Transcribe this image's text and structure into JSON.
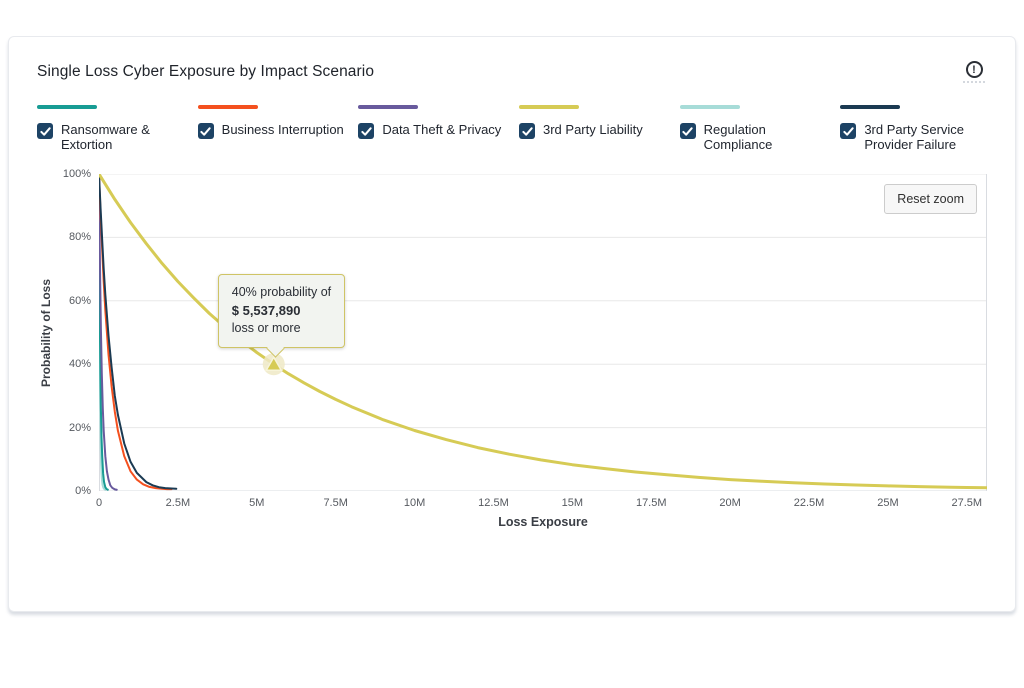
{
  "card": {
    "title": "Single Loss Cyber Exposure by Impact Scenario",
    "info_icon_glyph": "!"
  },
  "legend": [
    {
      "label": "Ransomware & Extortion",
      "color": "#189c94",
      "checked": true
    },
    {
      "label": "Business Interruption",
      "color": "#f4501e",
      "checked": true
    },
    {
      "label": "Data Theft & Privacy",
      "color": "#685a9d",
      "checked": true
    },
    {
      "label": "3rd Party Liability",
      "color": "#d6cb55",
      "checked": true
    },
    {
      "label": "Regulation Compliance",
      "color": "#a7dcd8",
      "checked": true
    },
    {
      "label": "3rd Party Service Provider Failure",
      "color": "#1b3a52",
      "checked": true
    }
  ],
  "chart": {
    "reset_label": "Reset zoom",
    "tooltip": {
      "line1": "40% probability of",
      "value": "$ 5,537,890",
      "line3": "loss or more",
      "marker_x": 5.53789,
      "marker_y": 40
    },
    "colors": {
      "grid": "#e8e8e8",
      "axis_border": "#d9dce1",
      "checkbox": "#1d4365",
      "marker_fill": "#d6cb55",
      "marker_halo": "#efe9c6"
    }
  },
  "chart_data": {
    "type": "line",
    "title": "Single Loss Cyber Exposure by Impact Scenario",
    "xlabel": "Loss Exposure",
    "ylabel": "Probability of Loss",
    "x_unit": "millions USD",
    "xlim": [
      0,
      28.14
    ],
    "ylim": [
      0,
      100
    ],
    "x_ticks": [
      {
        "value": 0,
        "label": "0"
      },
      {
        "value": 2.5,
        "label": "2.5M"
      },
      {
        "value": 5,
        "label": "5M"
      },
      {
        "value": 7.5,
        "label": "7.5M"
      },
      {
        "value": 10,
        "label": "10M"
      },
      {
        "value": 12.5,
        "label": "12.5M"
      },
      {
        "value": 15,
        "label": "15M"
      },
      {
        "value": 17.5,
        "label": "17.5M"
      },
      {
        "value": 20,
        "label": "20M"
      },
      {
        "value": 22.5,
        "label": "22.5M"
      },
      {
        "value": 25,
        "label": "25M"
      },
      {
        "value": 27.5,
        "label": "27.5M"
      }
    ],
    "y_ticks": [
      {
        "value": 0,
        "label": "0%"
      },
      {
        "value": 20,
        "label": "20%"
      },
      {
        "value": 40,
        "label": "40%"
      },
      {
        "value": 60,
        "label": "60%"
      },
      {
        "value": 80,
        "label": "80%"
      },
      {
        "value": 100,
        "label": "100%"
      }
    ],
    "grid": "horizontal",
    "legend_position": "top",
    "annotation": {
      "text": "40% probability of $ 5,537,890 loss or more",
      "x": 5.53789,
      "y": 40,
      "series": "3rd Party Liability"
    },
    "series": [
      {
        "name": "Regulation Compliance",
        "color": "#a7dcd8",
        "width": 2,
        "points": [
          [
            0,
            100
          ],
          [
            0.006,
            81
          ],
          [
            0.012,
            65
          ],
          [
            0.02,
            49
          ],
          [
            0.028,
            37
          ],
          [
            0.04,
            24
          ],
          [
            0.055,
            14
          ],
          [
            0.07,
            8.2
          ],
          [
            0.09,
            4
          ],
          [
            0.11,
            2
          ],
          [
            0.14,
            1
          ],
          [
            0.17,
            0.6
          ],
          [
            0.2,
            0.4
          ]
        ]
      },
      {
        "name": "Ransomware & Extortion",
        "color": "#189c94",
        "width": 2,
        "points": [
          [
            0,
            100
          ],
          [
            0.01,
            80
          ],
          [
            0.02,
            64
          ],
          [
            0.03,
            51
          ],
          [
            0.045,
            37
          ],
          [
            0.06,
            26
          ],
          [
            0.08,
            17
          ],
          [
            0.1,
            11
          ],
          [
            0.13,
            5.6
          ],
          [
            0.16,
            2.9
          ],
          [
            0.2,
            1.2
          ],
          [
            0.24,
            0.6
          ],
          [
            0.28,
            0.4
          ]
        ]
      },
      {
        "name": "Data Theft & Privacy",
        "color": "#685a9d",
        "width": 2,
        "points": [
          [
            0,
            100
          ],
          [
            0.02,
            80
          ],
          [
            0.04,
            64
          ],
          [
            0.06,
            51
          ],
          [
            0.09,
            37
          ],
          [
            0.12,
            26
          ],
          [
            0.15,
            19
          ],
          [
            0.2,
            11
          ],
          [
            0.25,
            6.2
          ],
          [
            0.3,
            3.6
          ],
          [
            0.36,
            1.8
          ],
          [
            0.42,
            1
          ],
          [
            0.5,
            0.5
          ],
          [
            0.56,
            0.4
          ]
        ]
      },
      {
        "name": "Business Interruption",
        "color": "#f4501e",
        "width": 2,
        "points": [
          [
            0,
            100
          ],
          [
            0.05,
            87
          ],
          [
            0.1,
            76
          ],
          [
            0.15,
            66
          ],
          [
            0.2,
            57
          ],
          [
            0.3,
            43
          ],
          [
            0.4,
            33
          ],
          [
            0.5,
            25
          ],
          [
            0.6,
            19
          ],
          [
            0.8,
            11
          ],
          [
            1,
            6.2
          ],
          [
            1.2,
            3.6
          ],
          [
            1.4,
            2.1
          ],
          [
            1.6,
            1.3
          ],
          [
            1.8,
            0.9
          ],
          [
            2,
            0.7
          ],
          [
            2.15,
            0.6
          ],
          [
            2.3,
            0.6
          ]
        ]
      },
      {
        "name": "3rd Party Service Provider Failure",
        "color": "#1b3a52",
        "width": 2,
        "points": [
          [
            0,
            100
          ],
          [
            0.05,
            89
          ],
          [
            0.1,
            79
          ],
          [
            0.15,
            70
          ],
          [
            0.2,
            62
          ],
          [
            0.3,
            49
          ],
          [
            0.4,
            39
          ],
          [
            0.5,
            30
          ],
          [
            0.6,
            24
          ],
          [
            0.8,
            15
          ],
          [
            1,
            9.2
          ],
          [
            1.2,
            5.7
          ],
          [
            1.5,
            2.8
          ],
          [
            1.7,
            1.8
          ],
          [
            1.9,
            1.2
          ],
          [
            2.1,
            0.9
          ],
          [
            2.3,
            0.8
          ],
          [
            2.45,
            0.7
          ]
        ]
      },
      {
        "name": "3rd Party Liability",
        "color": "#d6cb55",
        "width": 3,
        "points": [
          [
            0,
            100
          ],
          [
            0.5,
            92
          ],
          [
            1,
            84.7
          ],
          [
            1.5,
            78
          ],
          [
            2,
            71.8
          ],
          [
            2.5,
            66.1
          ],
          [
            3,
            60.9
          ],
          [
            3.5,
            56
          ],
          [
            4,
            51.6
          ],
          [
            4.5,
            47.5
          ],
          [
            5,
            43.7
          ],
          [
            5.53789,
            40
          ],
          [
            6,
            37
          ],
          [
            6.5,
            34.1
          ],
          [
            7,
            31.4
          ],
          [
            7.5,
            28.9
          ],
          [
            8,
            26.6
          ],
          [
            9,
            22.5
          ],
          [
            10,
            19.1
          ],
          [
            11,
            16.2
          ],
          [
            12,
            13.7
          ],
          [
            13,
            11.6
          ],
          [
            14,
            9.8
          ],
          [
            15,
            8.3
          ],
          [
            16,
            7.1
          ],
          [
            17,
            6
          ],
          [
            18,
            5.1
          ],
          [
            19,
            4.3
          ],
          [
            20,
            3.6
          ],
          [
            21,
            3.1
          ],
          [
            22,
            2.6
          ],
          [
            23,
            2.2
          ],
          [
            24,
            1.9
          ],
          [
            25,
            1.6
          ],
          [
            26,
            1.4
          ],
          [
            27,
            1.2
          ],
          [
            27.5,
            1.1
          ],
          [
            28.14,
            1
          ]
        ]
      }
    ]
  }
}
